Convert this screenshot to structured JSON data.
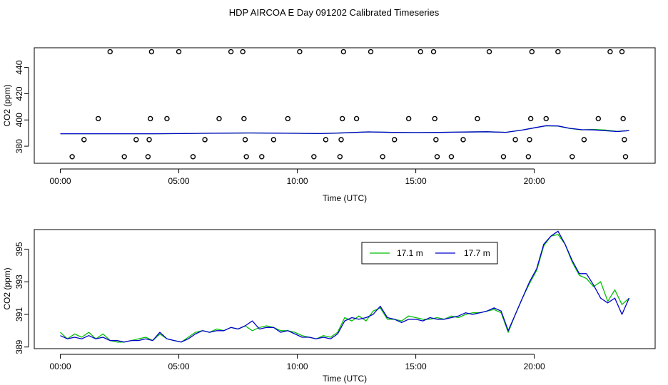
{
  "title": "HDP AIRCOA E  Day 091202  Calibrated Timeseries",
  "colors": {
    "series_a": "#00c000",
    "series_b": "#0000cc",
    "axis": "#000000"
  },
  "chart_data": [
    {
      "type": "scatter",
      "title": "HDP AIRCOA E  Day 091202  Calibrated Timeseries",
      "xlabel": "Time (UTC)",
      "ylabel": "CO2 (ppm)",
      "x_unit": "hours UTC",
      "xlim": [
        -1.1,
        25.1
      ],
      "ylim": [
        367,
        455
      ],
      "x_ticks": [
        0,
        5,
        10,
        15,
        20
      ],
      "x_tick_labels": [
        "00:00",
        "05:00",
        "10:00",
        "15:00",
        "20:00"
      ],
      "y_ticks": [
        380,
        400,
        420,
        440
      ],
      "y_tick_labels": [
        "380",
        "400",
        "420",
        "440"
      ],
      "grid": false,
      "markers": {
        "shape": "open-circle",
        "points": [
          {
            "x": 0.5,
            "y": 372
          },
          {
            "x": 1.0,
            "y": 385
          },
          {
            "x": 1.6,
            "y": 401
          },
          {
            "x": 2.1,
            "y": 452
          },
          {
            "x": 2.7,
            "y": 372
          },
          {
            "x": 3.2,
            "y": 385
          },
          {
            "x": 3.7,
            "y": 372
          },
          {
            "x": 3.75,
            "y": 385
          },
          {
            "x": 3.8,
            "y": 401
          },
          {
            "x": 3.85,
            "y": 452
          },
          {
            "x": 4.5,
            "y": 401
          },
          {
            "x": 5.0,
            "y": 452
          },
          {
            "x": 5.6,
            "y": 372
          },
          {
            "x": 6.1,
            "y": 385
          },
          {
            "x": 6.7,
            "y": 401
          },
          {
            "x": 7.2,
            "y": 452
          },
          {
            "x": 7.7,
            "y": 452
          },
          {
            "x": 7.75,
            "y": 401
          },
          {
            "x": 7.8,
            "y": 385
          },
          {
            "x": 7.85,
            "y": 372
          },
          {
            "x": 8.5,
            "y": 372
          },
          {
            "x": 9.0,
            "y": 385
          },
          {
            "x": 9.6,
            "y": 401
          },
          {
            "x": 10.1,
            "y": 452
          },
          {
            "x": 10.7,
            "y": 372
          },
          {
            "x": 11.2,
            "y": 385
          },
          {
            "x": 11.8,
            "y": 372
          },
          {
            "x": 11.85,
            "y": 385
          },
          {
            "x": 11.9,
            "y": 401
          },
          {
            "x": 11.95,
            "y": 452
          },
          {
            "x": 12.5,
            "y": 401
          },
          {
            "x": 13.1,
            "y": 452
          },
          {
            "x": 13.6,
            "y": 372
          },
          {
            "x": 14.1,
            "y": 385
          },
          {
            "x": 14.7,
            "y": 401
          },
          {
            "x": 15.2,
            "y": 452
          },
          {
            "x": 15.75,
            "y": 452
          },
          {
            "x": 15.8,
            "y": 401
          },
          {
            "x": 15.85,
            "y": 385
          },
          {
            "x": 15.9,
            "y": 372
          },
          {
            "x": 16.5,
            "y": 372
          },
          {
            "x": 17.0,
            "y": 385
          },
          {
            "x": 17.6,
            "y": 401
          },
          {
            "x": 18.1,
            "y": 452
          },
          {
            "x": 18.7,
            "y": 372
          },
          {
            "x": 19.2,
            "y": 385
          },
          {
            "x": 19.75,
            "y": 372
          },
          {
            "x": 19.8,
            "y": 385
          },
          {
            "x": 19.85,
            "y": 401
          },
          {
            "x": 19.9,
            "y": 452
          },
          {
            "x": 20.5,
            "y": 401
          },
          {
            "x": 21.0,
            "y": 452
          },
          {
            "x": 21.6,
            "y": 372
          },
          {
            "x": 22.1,
            "y": 385
          },
          {
            "x": 22.7,
            "y": 401
          },
          {
            "x": 23.2,
            "y": 452
          },
          {
            "x": 23.7,
            "y": 452
          },
          {
            "x": 23.75,
            "y": 401
          },
          {
            "x": 23.8,
            "y": 385
          },
          {
            "x": 23.85,
            "y": 372
          }
        ]
      },
      "series": [
        {
          "x": [
            0,
            1,
            2,
            3,
            4,
            5,
            6,
            7,
            8,
            9,
            10,
            11,
            12,
            13,
            14,
            15,
            16,
            17,
            18,
            18.8,
            19.5,
            20,
            20.5,
            21,
            21.5,
            22,
            22.5,
            23,
            23.5,
            24
          ],
          "y": [
            389.5,
            389.5,
            389.5,
            389.5,
            389.5,
            389.6,
            389.8,
            390,
            390.1,
            390,
            389.8,
            389.6,
            390.2,
            390.9,
            390.5,
            390.4,
            390.5,
            390.8,
            391,
            390.6,
            392.3,
            394,
            395.5,
            395.3,
            393.5,
            392.5,
            392.8,
            392.3,
            391.3,
            391.9
          ]
        },
        {
          "x": [
            0,
            1,
            2,
            3,
            4,
            5,
            6,
            7,
            8,
            9,
            10,
            11,
            12,
            13,
            14,
            15,
            16,
            17,
            18,
            18.8,
            19.5,
            20,
            20.5,
            21,
            21.5,
            22,
            22.5,
            23,
            23.5,
            24
          ],
          "y": [
            389.5,
            389.5,
            389.5,
            389.5,
            389.5,
            389.6,
            389.8,
            390,
            390.1,
            390,
            389.8,
            389.6,
            390.2,
            390.9,
            390.5,
            390.4,
            390.5,
            390.8,
            391,
            390.6,
            392.3,
            394,
            395.6,
            395.4,
            393.6,
            392.6,
            392.4,
            391.8,
            391.2,
            391.9
          ]
        }
      ]
    },
    {
      "type": "line",
      "xlabel": "Time (UTC)",
      "ylabel": "CO2 (ppm)",
      "x_unit": "hours UTC",
      "xlim": [
        -1.1,
        25.1
      ],
      "ylim": [
        388.9,
        396.2
      ],
      "x_ticks": [
        0,
        5,
        10,
        15,
        20
      ],
      "x_tick_labels": [
        "00:00",
        "05:00",
        "10:00",
        "15:00",
        "20:00"
      ],
      "y_ticks": [
        389,
        391,
        393,
        395
      ],
      "y_tick_labels": [
        "389",
        "391",
        "393",
        "395"
      ],
      "grid": false,
      "legend": "top-center",
      "series": [
        {
          "name": "17.1 m",
          "x": [
            0,
            0.3,
            0.6,
            0.9,
            1.2,
            1.5,
            1.8,
            2.1,
            2.4,
            2.7,
            3.0,
            3.3,
            3.6,
            3.9,
            4.2,
            4.5,
            4.8,
            5.1,
            5.4,
            5.7,
            6.0,
            6.3,
            6.6,
            6.9,
            7.2,
            7.5,
            7.8,
            8.1,
            8.4,
            8.7,
            9.0,
            9.3,
            9.6,
            9.9,
            10.2,
            10.5,
            10.8,
            11.1,
            11.4,
            11.7,
            12.0,
            12.3,
            12.6,
            12.9,
            13.2,
            13.5,
            13.8,
            14.1,
            14.4,
            14.7,
            15.0,
            15.3,
            15.6,
            15.9,
            16.2,
            16.5,
            16.8,
            17.1,
            17.4,
            17.7,
            18.0,
            18.3,
            18.6,
            18.9,
            19.2,
            19.5,
            19.8,
            20.1,
            20.4,
            20.7,
            21.0,
            21.3,
            21.6,
            21.9,
            22.2,
            22.5,
            22.8,
            23.1,
            23.4,
            23.7,
            24.0
          ],
          "y": [
            389.9,
            389.5,
            389.8,
            389.6,
            389.9,
            389.5,
            389.8,
            389.4,
            389.3,
            389.3,
            389.4,
            389.5,
            389.6,
            389.4,
            389.8,
            389.5,
            389.4,
            389.3,
            389.6,
            389.9,
            390.0,
            389.9,
            390.1,
            390.0,
            390.2,
            390.1,
            390.3,
            390.0,
            390.2,
            390.3,
            390.2,
            390.0,
            390.0,
            389.9,
            389.7,
            389.6,
            389.5,
            389.7,
            389.6,
            389.9,
            390.8,
            390.6,
            390.9,
            390.6,
            391.2,
            391.4,
            390.7,
            390.7,
            390.6,
            390.9,
            390.8,
            390.7,
            390.7,
            390.8,
            390.7,
            390.9,
            390.8,
            391.0,
            391.1,
            391.1,
            391.2,
            391.3,
            391.1,
            389.9,
            391.0,
            392.0,
            392.9,
            393.7,
            395.2,
            395.8,
            395.9,
            395.3,
            394.2,
            393.4,
            393.2,
            392.7,
            393.0,
            391.8,
            392.5,
            391.6,
            392.0
          ]
        },
        {
          "name": "17.7 m",
          "x": [
            0,
            0.3,
            0.6,
            0.9,
            1.2,
            1.5,
            1.8,
            2.1,
            2.4,
            2.7,
            3.0,
            3.3,
            3.6,
            3.9,
            4.2,
            4.5,
            4.8,
            5.1,
            5.4,
            5.7,
            6.0,
            6.3,
            6.6,
            6.9,
            7.2,
            7.5,
            7.8,
            8.1,
            8.4,
            8.7,
            9.0,
            9.3,
            9.6,
            9.9,
            10.2,
            10.5,
            10.8,
            11.1,
            11.4,
            11.7,
            12.0,
            12.3,
            12.6,
            12.9,
            13.2,
            13.5,
            13.8,
            14.1,
            14.4,
            14.7,
            15.0,
            15.3,
            15.6,
            15.9,
            16.2,
            16.5,
            16.8,
            17.1,
            17.4,
            17.7,
            18.0,
            18.3,
            18.6,
            18.9,
            19.2,
            19.5,
            19.8,
            20.1,
            20.4,
            20.7,
            21.0,
            21.3,
            21.6,
            21.9,
            22.2,
            22.5,
            22.8,
            23.1,
            23.4,
            23.7,
            24.0
          ],
          "y": [
            389.7,
            389.5,
            389.6,
            389.5,
            389.7,
            389.5,
            389.6,
            389.4,
            389.4,
            389.3,
            389.4,
            389.4,
            389.5,
            389.4,
            389.9,
            389.5,
            389.4,
            389.3,
            389.5,
            389.8,
            390.0,
            389.9,
            390.0,
            390.0,
            390.2,
            390.1,
            390.3,
            390.6,
            390.1,
            390.2,
            390.2,
            389.9,
            390.0,
            389.8,
            389.6,
            389.6,
            389.5,
            389.6,
            389.5,
            389.8,
            390.6,
            390.8,
            390.7,
            390.8,
            391.0,
            391.5,
            390.8,
            390.7,
            390.5,
            390.7,
            390.7,
            390.6,
            390.8,
            390.7,
            390.7,
            390.8,
            390.9,
            391.1,
            391.0,
            391.1,
            391.2,
            391.4,
            391.2,
            390.0,
            391.0,
            392.0,
            393.0,
            393.8,
            395.3,
            395.8,
            396.1,
            395.3,
            394.3,
            393.5,
            393.5,
            392.8,
            392.0,
            391.7,
            392.0,
            391.0,
            392.0
          ]
        }
      ]
    }
  ]
}
